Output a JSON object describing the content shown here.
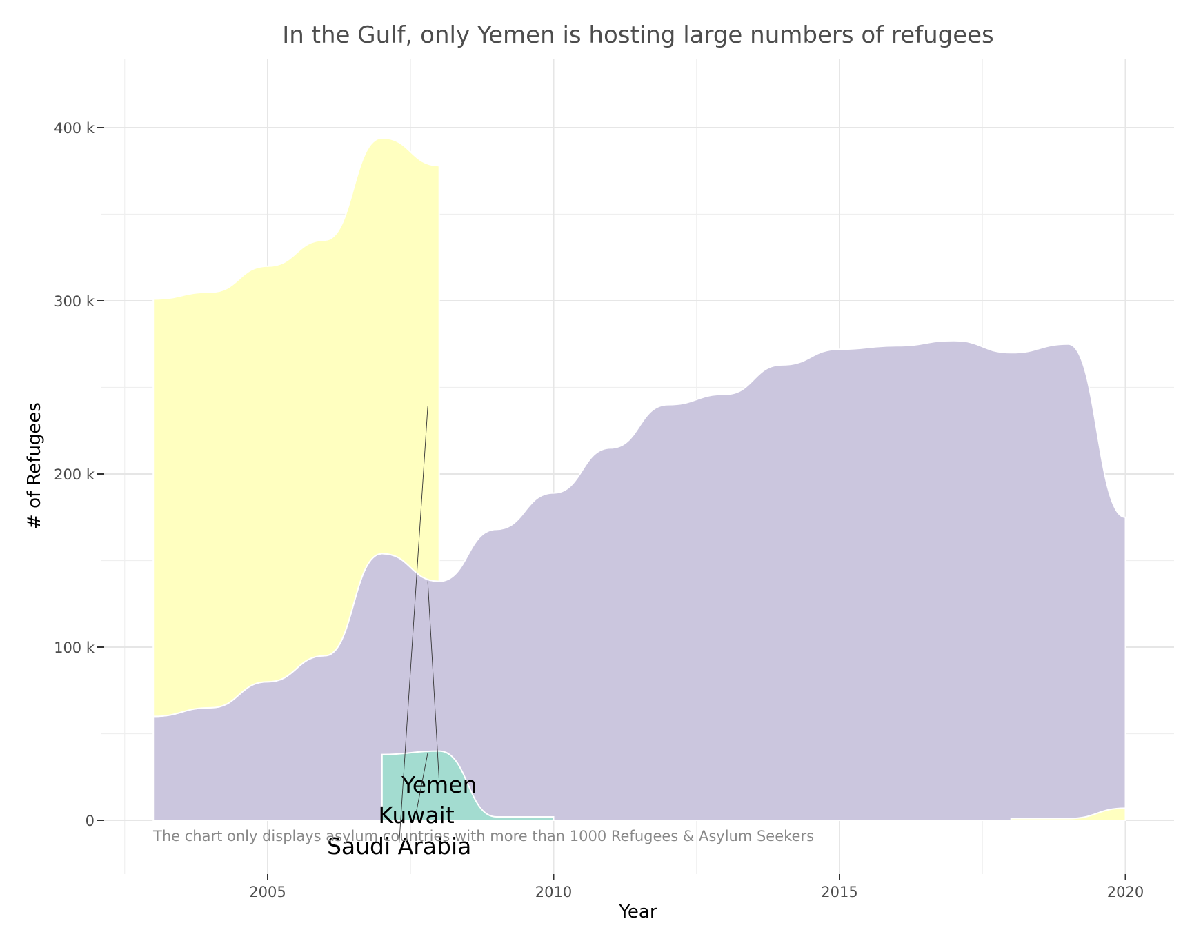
{
  "chart_data": {
    "type": "area",
    "title": "In the Gulf, only Yemen is hosting large numbers of refugees",
    "xlabel": "Year",
    "ylabel": "# of Refugees",
    "caption": "The chart only displays asylum countries with more than 1000 Refugees & Asylum Seekers",
    "xlim": [
      2002.6,
      2020.7
    ],
    "ylim": [
      -25000,
      440000
    ],
    "x_ticks": [
      2005,
      2010,
      2015,
      2020
    ],
    "y_ticks": [
      {
        "value": 0,
        "label": "0"
      },
      {
        "value": 100000,
        "label": "100 k"
      },
      {
        "value": 200000,
        "label": "200 k"
      },
      {
        "value": 300000,
        "label": "300 k"
      },
      {
        "value": 400000,
        "label": "400 k"
      }
    ],
    "grid": true,
    "legend": "none",
    "stacking": "stacked",
    "series": [
      {
        "name": "Saudi Arabia",
        "color": "#ffffc0",
        "points": [
          [
            2003,
            241000
          ],
          [
            2004,
            240000
          ],
          [
            2005,
            240000
          ],
          [
            2006,
            240000
          ],
          [
            2007,
            240000
          ],
          [
            2008,
            240000
          ]
        ],
        "segments": [
          [
            [
              2003,
              241000
            ],
            [
              2004,
              240000
            ],
            [
              2005,
              240000
            ],
            [
              2006,
              240000
            ],
            [
              2007,
              240000
            ],
            [
              2008,
              240000
            ]
          ],
          [
            [
              2018,
              1000
            ],
            [
              2019,
              1000
            ],
            [
              2020,
              7000
            ]
          ]
        ]
      },
      {
        "name": "Yemen",
        "color": "#cbc6de",
        "segments": [
          [
            [
              2003,
              60000
            ],
            [
              2004,
              65000
            ],
            [
              2005,
              80000
            ],
            [
              2006,
              95000
            ],
            [
              2007,
              154000
            ],
            [
              2008,
              138000
            ],
            [
              2009,
              168000
            ],
            [
              2010,
              189000
            ],
            [
              2011,
              215000
            ],
            [
              2012,
              240000
            ],
            [
              2013,
              246000
            ],
            [
              2014,
              263000
            ],
            [
              2015,
              272000
            ],
            [
              2016,
              274000
            ],
            [
              2017,
              277000
            ],
            [
              2018,
              270000
            ],
            [
              2019,
              275000
            ],
            [
              2020,
              175000
            ]
          ]
        ]
      },
      {
        "name": "Kuwait",
        "color": "#a3dcd0",
        "segments": [
          [
            [
              2007,
              38000
            ],
            [
              2008,
              40000
            ],
            [
              2009,
              2000
            ],
            [
              2010,
              2000
            ]
          ]
        ]
      }
    ],
    "labels": [
      {
        "text": "Yemen",
        "x": 2008.0,
        "y": 16000,
        "anchor_x": 2007.8,
        "anchor_y": 138000
      },
      {
        "text": "Kuwait",
        "x": 2007.6,
        "y": -1500,
        "anchor_x": 2007.8,
        "anchor_y": 39000
      },
      {
        "text": "Saudi Arabia",
        "x": 2007.3,
        "y": -19500,
        "anchor_x": 2007.8,
        "anchor_y": 239000
      }
    ]
  }
}
